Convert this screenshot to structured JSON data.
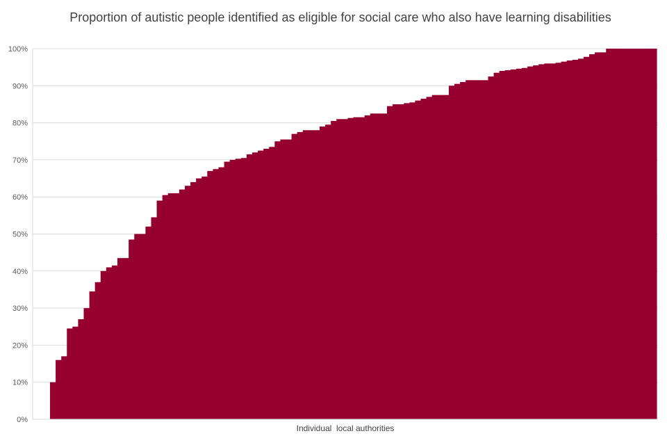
{
  "chart_data": {
    "type": "bar",
    "title": "Proportion of autistic people identified as eligible for social care who also have learning disabilities",
    "xlabel": "Individual  local authorities",
    "ylabel": "",
    "ylim": [
      0,
      100
    ],
    "y_ticks": [
      "0%",
      "10%",
      "20%",
      "30%",
      "40%",
      "50%",
      "60%",
      "70%",
      "80%",
      "90%",
      "100%"
    ],
    "grid": true,
    "legend": "none",
    "bar_color": "#960030",
    "values": [
      10,
      16,
      17,
      24.5,
      25,
      27,
      30,
      34.5,
      37,
      40,
      41,
      41.5,
      43.5,
      43.5,
      48.5,
      50,
      50,
      52,
      54.5,
      59,
      60.5,
      61,
      61,
      62,
      63,
      64,
      65,
      65.5,
      67,
      67.5,
      68,
      69.5,
      70,
      70.3,
      70.5,
      71.5,
      72,
      72.5,
      73,
      73.5,
      75,
      75.5,
      75.5,
      77,
      77.5,
      78,
      78,
      78,
      79,
      79.5,
      80.5,
      81,
      81,
      81.3,
      81.5,
      81.5,
      82,
      82.5,
      82.5,
      82.5,
      84.5,
      85,
      85,
      85.3,
      85.5,
      86,
      86.5,
      87,
      87.5,
      87.5,
      87.5,
      90,
      90.5,
      91,
      91.5,
      91.5,
      91.5,
      91.5,
      92.5,
      93.5,
      94,
      94.2,
      94.4,
      94.6,
      94.8,
      95.2,
      95.5,
      95.8,
      96,
      96,
      96.2,
      96.5,
      96.8,
      97,
      97.3,
      97.8,
      98.5,
      99,
      99,
      100,
      100,
      100,
      100,
      100,
      100,
      100,
      100,
      100
    ]
  }
}
